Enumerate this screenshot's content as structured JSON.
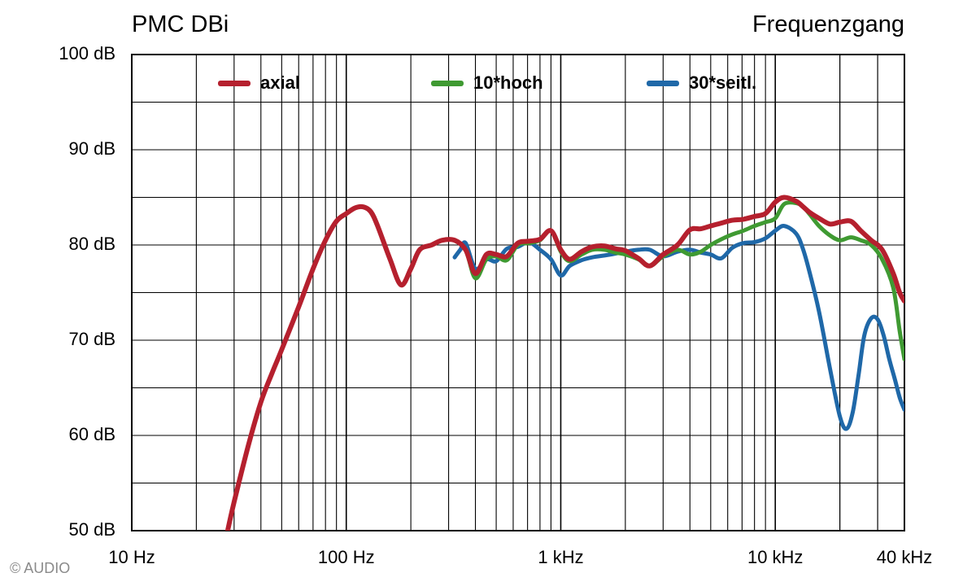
{
  "header": {
    "title": "PMC DBi",
    "subtitle": "Frequenzgang"
  },
  "footer": {
    "copyright": "© AUDIO"
  },
  "colors": {
    "axial": "#b5202e",
    "hoch": "#3f9a32",
    "seitl": "#1f68a8",
    "grid": "#000000"
  },
  "chart_data": {
    "type": "line",
    "title": "PMC DBi",
    "subtitle": "Frequenzgang",
    "x_scale": "log",
    "xlim": [
      10,
      40000
    ],
    "ylim": [
      50,
      100
    ],
    "x_tick_labels": [
      {
        "value": 10,
        "label": "10 Hz"
      },
      {
        "value": 100,
        "label": "100 Hz"
      },
      {
        "value": 1000,
        "label": "1 kHz"
      },
      {
        "value": 10000,
        "label": "10 kHz"
      },
      {
        "value": 40000,
        "label": "40 kHz"
      }
    ],
    "y_tick_labels": [
      {
        "value": 100,
        "label": "100 dB"
      },
      {
        "value": 90,
        "label": "90 dB"
      },
      {
        "value": 80,
        "label": "80 dB"
      },
      {
        "value": 70,
        "label": "70 dB"
      },
      {
        "value": 60,
        "label": "60 dB"
      },
      {
        "value": 50,
        "label": "50 dB"
      }
    ],
    "grid": true,
    "legend_position": "top",
    "series": [
      {
        "name": "axial",
        "color": "#b5202e",
        "x": [
          28,
          30,
          35,
          40,
          45,
          50,
          60,
          70,
          80,
          90,
          100,
          110,
          120,
          130,
          140,
          160,
          180,
          200,
          220,
          250,
          280,
          320,
          360,
          400,
          450,
          500,
          560,
          630,
          710,
          800,
          900,
          1000,
          1100,
          1250,
          1400,
          1600,
          1800,
          2000,
          2300,
          2600,
          3000,
          3500,
          4000,
          4500,
          5000,
          5600,
          6300,
          7100,
          8000,
          9000,
          10000,
          11000,
          12500,
          13500,
          14500,
          16000,
          18000,
          20000,
          22500,
          25000,
          28000,
          31500,
          35500,
          38000,
          40000
        ],
        "y": [
          50,
          53,
          59,
          63.5,
          66.5,
          69,
          73.5,
          77.5,
          80.5,
          82.5,
          83.3,
          83.9,
          84,
          83.5,
          82,
          78.5,
          75.8,
          77.5,
          79.5,
          80,
          80.5,
          80.5,
          79.5,
          77,
          79,
          79,
          78.8,
          80.2,
          80.4,
          80.6,
          81.5,
          79.5,
          78.5,
          79.3,
          79.8,
          79.9,
          79.6,
          79.4,
          78.6,
          77.8,
          79,
          80,
          81.6,
          81.7,
          82,
          82.3,
          82.6,
          82.7,
          83,
          83.3,
          84.5,
          85,
          84.6,
          84,
          83.4,
          82.8,
          82.2,
          82.4,
          82.5,
          81.5,
          80.5,
          79.5,
          77,
          75,
          74.1
        ]
      },
      {
        "name": "10*hoch",
        "color": "#3f9a32",
        "x": [
          320,
          360,
          400,
          450,
          500,
          560,
          630,
          710,
          800,
          900,
          1000,
          1100,
          1250,
          1400,
          1600,
          1800,
          2000,
          2300,
          2600,
          3000,
          3500,
          4000,
          4500,
          5000,
          5600,
          6300,
          7100,
          8000,
          9000,
          10000,
          11000,
          12500,
          13500,
          14500,
          16000,
          18000,
          20000,
          22500,
          25000,
          28000,
          31500,
          35500,
          38000,
          40000
        ],
        "y": [
          80.5,
          79.5,
          76.5,
          78.5,
          78.8,
          78.4,
          80,
          80.2,
          80.5,
          81.5,
          79.3,
          78.3,
          79,
          79.5,
          79.5,
          79.2,
          79,
          78.5,
          77.8,
          78.8,
          79.5,
          79,
          79.3,
          80,
          80.6,
          81.1,
          81.5,
          82,
          82.4,
          82.8,
          84.3,
          84.4,
          84,
          83.2,
          82,
          81,
          80.5,
          80.8,
          80.5,
          80,
          78.5,
          75.5,
          71,
          68
        ]
      },
      {
        "name": "30*seitl.",
        "color": "#1f68a8",
        "x": [
          320,
          340,
          360,
          400,
          450,
          500,
          560,
          630,
          710,
          800,
          900,
          1000,
          1100,
          1250,
          1400,
          1600,
          1800,
          2000,
          2300,
          2600,
          3000,
          3500,
          4000,
          4500,
          5000,
          5600,
          6300,
          7100,
          8000,
          9000,
          10000,
          11000,
          12500,
          13500,
          14500,
          16000,
          18000,
          20000,
          21500,
          23000,
          24500,
          26000,
          28000,
          30000,
          32000,
          34000,
          36000,
          38000,
          40000
        ],
        "y": [
          78.7,
          79.5,
          80.2,
          77.5,
          78.5,
          78.3,
          79.6,
          79.8,
          80.3,
          79.5,
          78.5,
          76.8,
          77.8,
          78.4,
          78.7,
          78.9,
          79.1,
          79.3,
          79.5,
          79.5,
          78.8,
          79.3,
          79.5,
          79.2,
          79,
          78.6,
          79.7,
          80.2,
          80.3,
          80.7,
          81.5,
          82,
          81.2,
          79.5,
          77,
          73,
          67,
          62,
          60.7,
          62.5,
          66.5,
          70.5,
          72.3,
          72.2,
          70.5,
          68,
          66,
          64,
          62.7
        ]
      }
    ]
  }
}
